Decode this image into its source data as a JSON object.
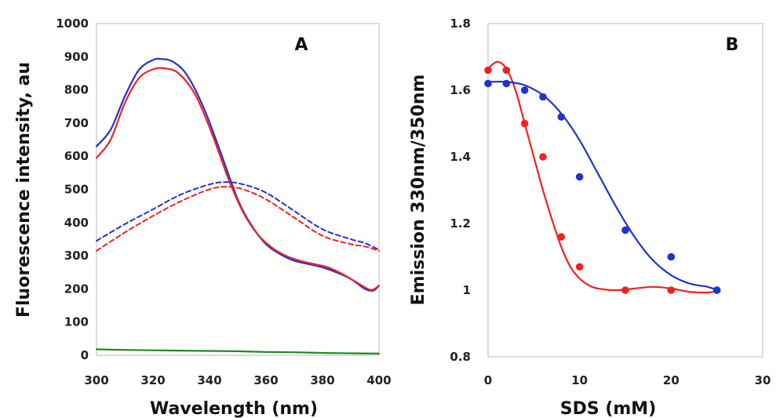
{
  "chart_data": [
    {
      "panel_label": "A",
      "type": "line",
      "xlabel": "Wavelength (nm)",
      "ylabel": "Fluorescence intensity, au",
      "xlim": [
        300,
        400
      ],
      "ylim": [
        0,
        1000
      ],
      "x_ticks": [
        300,
        320,
        340,
        360,
        380,
        400
      ],
      "y_ticks": [
        0,
        100,
        200,
        300,
        400,
        500,
        600,
        700,
        800,
        900,
        1000
      ],
      "grid": false,
      "series": [
        {
          "color": "#2233cc",
          "style": "solid",
          "points": [
            [
              300,
              630
            ],
            [
              305,
              680
            ],
            [
              310,
              780
            ],
            [
              315,
              860
            ],
            [
              320,
              890
            ],
            [
              323,
              893
            ],
            [
              327,
              885
            ],
            [
              332,
              845
            ],
            [
              338,
              745
            ],
            [
              344,
              610
            ],
            [
              350,
              470
            ],
            [
              355,
              390
            ],
            [
              360,
              335
            ],
            [
              365,
              305
            ],
            [
              370,
              285
            ],
            [
              375,
              275
            ],
            [
              380,
              265
            ],
            [
              385,
              250
            ],
            [
              390,
              230
            ],
            [
              395,
              200
            ],
            [
              398,
              195
            ],
            [
              400,
              210
            ]
          ]
        },
        {
          "color": "#ee2222",
          "style": "solid",
          "points": [
            [
              300,
              595
            ],
            [
              305,
              650
            ],
            [
              310,
              760
            ],
            [
              315,
              835
            ],
            [
              320,
              862
            ],
            [
              324,
              865
            ],
            [
              329,
              850
            ],
            [
              335,
              785
            ],
            [
              341,
              665
            ],
            [
              347,
              525
            ],
            [
              352,
              430
            ],
            [
              357,
              365
            ],
            [
              362,
              325
            ],
            [
              367,
              300
            ],
            [
              372,
              285
            ],
            [
              377,
              275
            ],
            [
              382,
              265
            ],
            [
              387,
              245
            ],
            [
              392,
              220
            ],
            [
              396,
              200
            ],
            [
              398,
              198
            ],
            [
              400,
              210
            ]
          ]
        },
        {
          "color": "#2233cc",
          "style": "dashed",
          "points": [
            [
              300,
              345
            ],
            [
              310,
              395
            ],
            [
              320,
              440
            ],
            [
              330,
              485
            ],
            [
              340,
              515
            ],
            [
              346,
              522
            ],
            [
              352,
              515
            ],
            [
              360,
              490
            ],
            [
              370,
              435
            ],
            [
              380,
              380
            ],
            [
              390,
              350
            ],
            [
              395,
              338
            ],
            [
              400,
              318
            ]
          ]
        },
        {
          "color": "#ee2222",
          "style": "dashed",
          "points": [
            [
              300,
              315
            ],
            [
              310,
              370
            ],
            [
              320,
              420
            ],
            [
              330,
              465
            ],
            [
              340,
              500
            ],
            [
              346,
              508
            ],
            [
              352,
              500
            ],
            [
              360,
              470
            ],
            [
              370,
              415
            ],
            [
              380,
              360
            ],
            [
              390,
              335
            ],
            [
              395,
              328
            ],
            [
              400,
              315
            ]
          ]
        },
        {
          "color": "#228822",
          "style": "solid",
          "points": [
            [
              300,
              18
            ],
            [
              310,
              16
            ],
            [
              320,
              15
            ],
            [
              330,
              14
            ],
            [
              340,
              13
            ],
            [
              350,
              12
            ],
            [
              360,
              10
            ],
            [
              370,
              9
            ],
            [
              380,
              7
            ],
            [
              390,
              6
            ],
            [
              400,
              5
            ]
          ]
        }
      ]
    },
    {
      "panel_label": "B",
      "type": "scatter",
      "xlabel": "SDS (mM)",
      "ylabel": "Emission 330nm/350nm",
      "xlim": [
        0,
        30
      ],
      "ylim": [
        0.8,
        1.8
      ],
      "x_ticks": [
        0,
        10,
        20,
        30
      ],
      "y_ticks": [
        0.8,
        1,
        1.2,
        1.4,
        1.6,
        1.8
      ],
      "grid": false,
      "series": [
        {
          "color": "#ee2222",
          "points": [
            [
              0,
              1.66
            ],
            [
              2,
              1.66
            ],
            [
              4,
              1.5
            ],
            [
              6,
              1.4
            ],
            [
              8,
              1.16
            ],
            [
              10,
              1.07
            ],
            [
              15,
              1.0
            ],
            [
              20,
              1.0
            ],
            [
              25,
              1.0
            ]
          ],
          "fit": [
            [
              0,
              1.665
            ],
            [
              1,
              1.685
            ],
            [
              2,
              1.665
            ],
            [
              3,
              1.6
            ],
            [
              4,
              1.5
            ],
            [
              5,
              1.4
            ],
            [
              6,
              1.3
            ],
            [
              7,
              1.21
            ],
            [
              8,
              1.13
            ],
            [
              9,
              1.07
            ],
            [
              10,
              1.035
            ],
            [
              11,
              1.015
            ],
            [
              12,
              1.005
            ],
            [
              14,
              1.0
            ],
            [
              16,
              1.005
            ],
            [
              18,
              1.01
            ],
            [
              20,
              1.005
            ],
            [
              22,
              0.995
            ],
            [
              24,
              0.993
            ],
            [
              25,
              0.997
            ]
          ]
        },
        {
          "color": "#2233cc",
          "points": [
            [
              0,
              1.62
            ],
            [
              2,
              1.62
            ],
            [
              4,
              1.6
            ],
            [
              6,
              1.58
            ],
            [
              8,
              1.52
            ],
            [
              10,
              1.34
            ],
            [
              15,
              1.18
            ],
            [
              20,
              1.1
            ],
            [
              25,
              1.0
            ]
          ],
          "fit": [
            [
              0,
              1.625
            ],
            [
              2,
              1.625
            ],
            [
              4,
              1.615
            ],
            [
              6,
              1.585
            ],
            [
              8,
              1.53
            ],
            [
              10,
              1.45
            ],
            [
              12,
              1.35
            ],
            [
              14,
              1.25
            ],
            [
              16,
              1.16
            ],
            [
              18,
              1.09
            ],
            [
              20,
              1.045
            ],
            [
              22,
              1.02
            ],
            [
              24,
              1.01
            ],
            [
              25,
              1.0
            ]
          ]
        }
      ]
    }
  ]
}
